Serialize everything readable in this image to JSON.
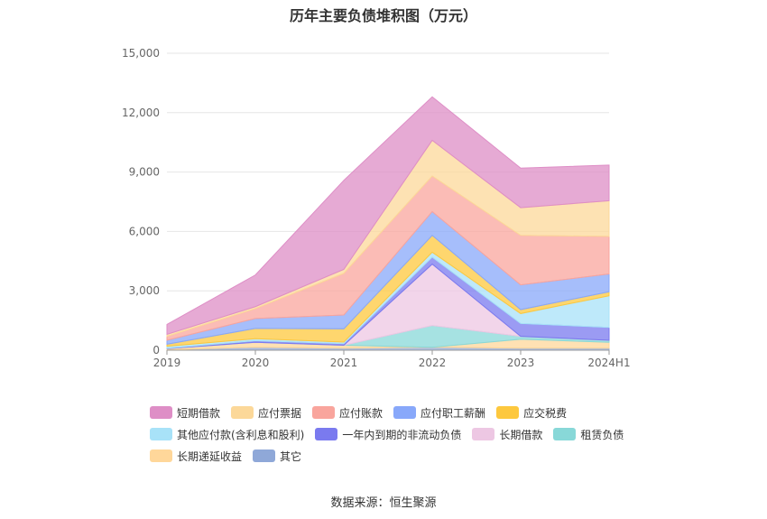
{
  "title": "历年主要负债堆积图（万元）",
  "source": "数据来源：恒生聚源",
  "chart_data": {
    "type": "area",
    "stacked": true,
    "x": [
      "2019",
      "2020",
      "2021",
      "2022",
      "2023",
      "2024H1"
    ],
    "ylim": [
      0,
      15000
    ],
    "yticks": [
      0,
      3000,
      6000,
      9000,
      12000,
      15000
    ],
    "ytick_labels": [
      "0",
      "3,000",
      "6,000",
      "9,000",
      "12,000",
      "15,000"
    ],
    "grid": true,
    "legend_position": "bottom",
    "series": [
      {
        "name": "其它",
        "color": "#8fa8d8",
        "values": [
          20,
          150,
          100,
          150,
          100,
          100
        ]
      },
      {
        "name": "长期递延收益",
        "color": "#ffd79a",
        "values": [
          60,
          250,
          150,
          0,
          450,
          300
        ]
      },
      {
        "name": "租赁负债",
        "color": "#88d8d8",
        "values": [
          0,
          0,
          0,
          1100,
          150,
          100
        ]
      },
      {
        "name": "长期借款",
        "color": "#edc7e3",
        "values": [
          0,
          0,
          0,
          3100,
          0,
          0
        ]
      },
      {
        "name": "一年内到期的非流动负债",
        "color": "#7a7aef",
        "values": [
          20,
          80,
          80,
          350,
          650,
          650
        ]
      },
      {
        "name": "其他应付款(含利息和股利)",
        "color": "#a8e2f8",
        "values": [
          100,
          100,
          80,
          250,
          500,
          1600
        ]
      },
      {
        "name": "应交税费",
        "color": "#fdc83e",
        "values": [
          100,
          520,
          670,
          850,
          200,
          200
        ]
      },
      {
        "name": "应付职工薪酬",
        "color": "#88a8fa",
        "values": [
          200,
          500,
          700,
          1200,
          1250,
          900
        ]
      },
      {
        "name": "应付账款",
        "color": "#f9a59d",
        "values": [
          200,
          500,
          2100,
          1800,
          2500,
          1900
        ]
      },
      {
        "name": "应付票据",
        "color": "#fcd899",
        "values": [
          100,
          100,
          200,
          1800,
          1400,
          1800
        ]
      },
      {
        "name": "短期借款",
        "color": "#de8ec6",
        "values": [
          500,
          1600,
          4500,
          2200,
          2000,
          1800
        ]
      }
    ]
  }
}
